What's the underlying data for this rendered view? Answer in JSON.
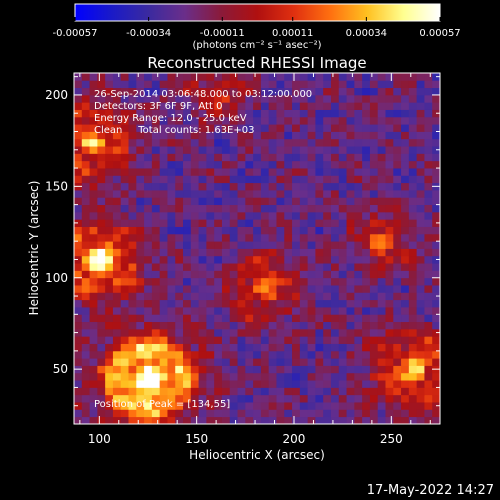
{
  "chart_data": {
    "type": "heatmap",
    "title": "Reconstructed RHESSI Image",
    "xlabel": "Heliocentric X (arcsec)",
    "ylabel": "Heliocentric Y (arcsec)",
    "xlim": [
      87,
      275
    ],
    "ylim": [
      20,
      212
    ],
    "xticks": [
      100,
      150,
      200,
      250
    ],
    "yticks": [
      50,
      100,
      150,
      200
    ],
    "colorbar": {
      "range": [
        -0.00057,
        0.00057
      ],
      "ticks": [
        "-0.00057",
        "-0.00034",
        "-0.00011",
        "0.00011",
        "0.00034",
        "0.00057"
      ],
      "unit_label": "(photons cm⁻² s⁻¹ asec⁻²)",
      "colormap": [
        "#0000ff",
        "#1a1ac8",
        "#3a2aa0",
        "#6a2e8a",
        "#8a1a3a",
        "#b01010",
        "#e03010",
        "#ff7010",
        "#ffc020",
        "#ffff90",
        "#ffffff"
      ]
    },
    "annotations": [
      "26-Sep-2014 03:06:48.000 to 03:12:00.000",
      "Detectors: 3F 6F 9F, Att 0",
      "Energy Range: 12.0 - 25.0 keV",
      "Clean     Total counts: 1.63E+03"
    ],
    "peak_label": "Position of Peak = [134,55]",
    "peak_position": [
      134,
      55
    ],
    "hot_regions": [
      {
        "x": 125,
        "y": 45,
        "sigma": 16,
        "amp": 0.95
      },
      {
        "x": 100,
        "y": 110,
        "sigma": 13,
        "amp": 0.75
      },
      {
        "x": 95,
        "y": 175,
        "sigma": 14,
        "amp": 0.55
      },
      {
        "x": 262,
        "y": 50,
        "sigma": 14,
        "amp": 0.55
      },
      {
        "x": 185,
        "y": 95,
        "sigma": 12,
        "amp": 0.45
      },
      {
        "x": 245,
        "y": 120,
        "sigma": 10,
        "amp": 0.4
      },
      {
        "x": 160,
        "y": 200,
        "sigma": 10,
        "amp": 0.35
      }
    ]
  },
  "footer": {
    "timestamp": "17-May-2022 14:27"
  }
}
